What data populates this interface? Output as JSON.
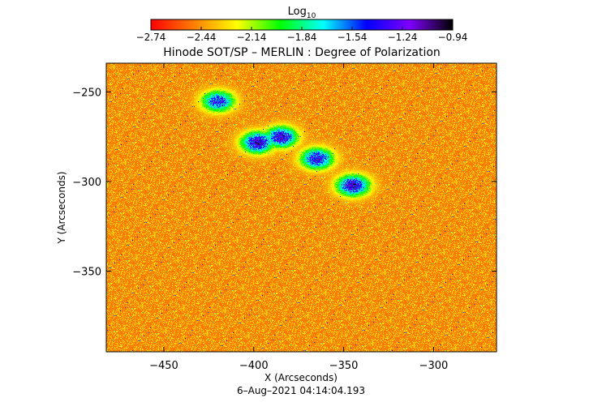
{
  "chart_data": {
    "type": "heatmap",
    "title": "Hinode SOT/SP – MERLIN : Degree of Polarization",
    "xlabel": "X (Arcseconds)",
    "ylabel": "Y (Arcseconds)",
    "timestamp": "6–Aug–2021 04:14:04.193",
    "colorbar": {
      "label_base": "Log",
      "label_sub": "10",
      "range": [
        -2.74,
        -0.94
      ],
      "ticks": [
        "-2.74",
        "-2.44",
        "-2.14",
        "-1.84",
        "-1.54",
        "-1.24",
        "-0.94"
      ],
      "colormap": [
        "#ff0000",
        "#ff7f00",
        "#ffff00",
        "#00ff00",
        "#00ffff",
        "#0000ff",
        "#7f00ff",
        "#000000"
      ]
    },
    "xlim": [
      -482,
      -265
    ],
    "ylim": [
      -395,
      -234
    ],
    "xticks": [
      {
        "value": -450,
        "label": "−450"
      },
      {
        "value": -400,
        "label": "−400"
      },
      {
        "value": -350,
        "label": "−350"
      },
      {
        "value": -300,
        "label": "−300"
      }
    ],
    "yticks": [
      {
        "value": -250,
        "label": "−250"
      },
      {
        "value": -300,
        "label": "−300"
      },
      {
        "value": -350,
        "label": "−350"
      }
    ],
    "background_level": -2.5,
    "features": [
      {
        "x": -398,
        "y": -278,
        "peak": -1.2
      },
      {
        "x": -385,
        "y": -275,
        "peak": -1.25
      },
      {
        "x": -365,
        "y": -287,
        "peak": -1.3
      },
      {
        "x": -345,
        "y": -302,
        "peak": -1.2
      },
      {
        "x": -420,
        "y": -255,
        "peak": -1.4
      }
    ]
  }
}
